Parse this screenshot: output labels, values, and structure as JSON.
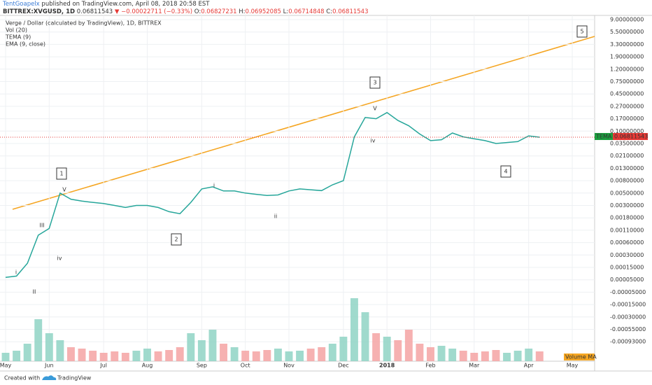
{
  "header": {
    "author": "TentGoapelx",
    "published": "published on TradingView.com, April 08, 2018 20:58 EST",
    "symbol": "BITTREX:XVGUSD, 1D",
    "last": "0.06811543",
    "change": "▼ −0.00022711 (−0.33%)",
    "o_label": "O:",
    "open": "0.06827231",
    "h_label": "H:",
    "high": "0.06952085",
    "l_label": "L:",
    "low": "0.06714848",
    "c_label": "C:",
    "close": "0.06811543"
  },
  "legend": [
    "Verge / Dollar (calculated by TradingView), 1D, BITTREX",
    "Vol (20)",
    "TEMA (9)",
    "EMA (9, close)"
  ],
  "price_tags": {
    "tema": "TEMA",
    "volume_ma": "Volume MA"
  },
  "wave_labels": [
    "1",
    "2",
    "3",
    "4",
    "5"
  ],
  "subwave_labels": [
    "i",
    "II",
    "III",
    "iv",
    "V",
    "i",
    "ii",
    "iv",
    "V"
  ],
  "footer": {
    "created": "Created with",
    "brand": "TradingView"
  },
  "chart_data": {
    "type": "line",
    "categories": [
      "May",
      null,
      null,
      null,
      "Jun",
      null,
      null,
      null,
      null,
      "Jul",
      null,
      null,
      null,
      "Aug",
      null,
      null,
      null,
      null,
      "Sep",
      null,
      null,
      null,
      "Oct",
      null,
      null,
      null,
      "Nov",
      null,
      null,
      null,
      null,
      "Dec",
      null,
      null,
      null,
      "2018",
      null,
      null,
      null,
      "Feb",
      null,
      null,
      null,
      "Mar",
      null,
      null,
      null,
      null,
      "Apr",
      null,
      null,
      null,
      "May"
    ],
    "series": [
      {
        "name": "Verge / Dollar (calculated by TradingView), 1D, BITTREX",
        "color": "#26a69a",
        "values": [
          7e-05,
          8e-05,
          0.0002,
          0.0009,
          0.0012,
          0.005,
          0.004,
          0.0037,
          0.0035,
          0.0033,
          0.003,
          0.0028,
          0.003,
          0.003,
          0.0028,
          0.0024,
          0.0022,
          0.0035,
          0.006,
          0.0065,
          0.0055,
          0.0055,
          0.005,
          0.0048,
          0.0046,
          0.0047,
          0.0055,
          0.006,
          0.0058,
          0.0056,
          0.007,
          0.008,
          0.07,
          0.18,
          0.17,
          0.22,
          0.16,
          0.13,
          0.085,
          0.05,
          0.055,
          0.09,
          0.07,
          0.06,
          0.05,
          0.035,
          0.04,
          0.045,
          0.075,
          0.068,
          null,
          null,
          null
        ]
      },
      {
        "name": "Vol (20)",
        "axis": "volume",
        "color": "#8fd3c4",
        "values": [
          12,
          15,
          25,
          60,
          40,
          30,
          20,
          18,
          15,
          12,
          14,
          12,
          15,
          18,
          14,
          16,
          20,
          40,
          30,
          45,
          25,
          20,
          15,
          14,
          16,
          18,
          14,
          15,
          18,
          20,
          25,
          35,
          90,
          70,
          40,
          35,
          30,
          45,
          25,
          20,
          22,
          18,
          15,
          12,
          14,
          16,
          12,
          15,
          18,
          14,
          null,
          null,
          null
        ]
      }
    ],
    "volume_lim": [
      0,
      100
    ],
    "yticks": [
      {
        "value": 9,
        "label": "9.00000000"
      },
      {
        "value": 5.5,
        "label": "5.50000000"
      },
      {
        "value": 3.3,
        "label": "3.30000000"
      },
      {
        "value": 1.9,
        "label": "1.90000000"
      },
      {
        "value": 1.2,
        "label": "1.20000000"
      },
      {
        "value": 0.75,
        "label": "0.75000000"
      },
      {
        "value": 0.45,
        "label": "0.45000000"
      },
      {
        "value": 0.27,
        "label": "0.27000000"
      },
      {
        "value": 0.17,
        "label": "0.17000000"
      },
      {
        "value": 0.1,
        "label": "0.10000000"
      },
      {
        "value": 0.035,
        "label": "0.03500000"
      },
      {
        "value": 0.021,
        "label": "0.02100000"
      },
      {
        "value": 0.013,
        "label": "0.01300000"
      },
      {
        "value": 0.008,
        "label": "0.00800000"
      },
      {
        "value": 0.005,
        "label": "0.00500000"
      },
      {
        "value": 0.003,
        "label": "0.00300000"
      },
      {
        "value": 0.0018,
        "label": "0.00180000"
      },
      {
        "value": 0.0011,
        "label": "0.00110000"
      },
      {
        "value": 0.0006,
        "label": "0.00060000"
      },
      {
        "value": 0.0003,
        "label": "0.00030000"
      },
      {
        "value": 0.00015,
        "label": "0.00015000"
      },
      {
        "value": 5e-05,
        "label": "0.00005000"
      },
      {
        "value": -5e-05,
        "label": "-0.00005000"
      },
      {
        "value": -0.00015,
        "label": "-0.00015000"
      },
      {
        "value": -0.0003,
        "label": "-0.00030000"
      },
      {
        "value": -0.00055,
        "label": "-0.00055000"
      },
      {
        "value": -0.00093,
        "label": "-0.00093000"
      }
    ]
  }
}
